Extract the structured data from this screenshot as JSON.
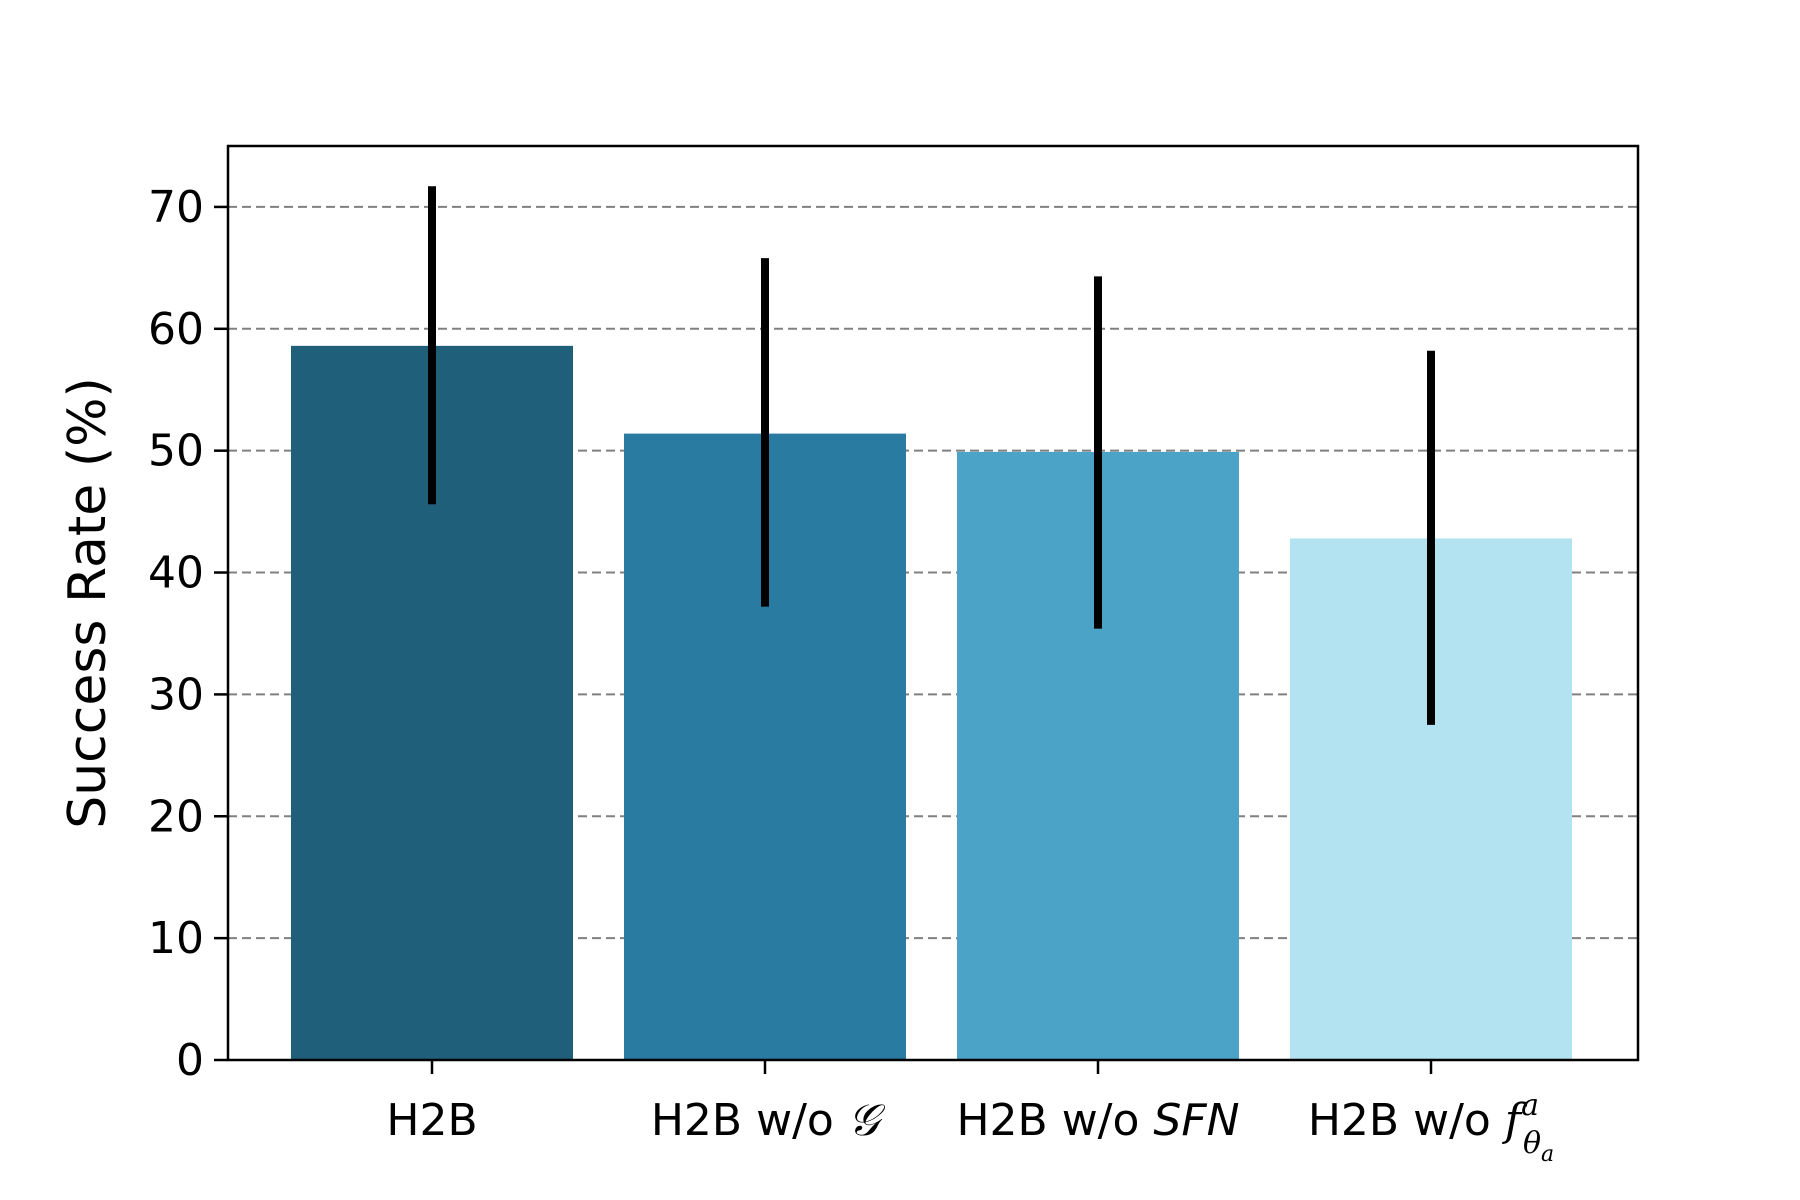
{
  "chart_data": {
    "type": "bar",
    "title": "",
    "xlabel": "",
    "ylabel": "Success Rate (%)",
    "ylim": [
      0,
      75
    ],
    "yticks": [
      0,
      10,
      20,
      30,
      40,
      50,
      60,
      70
    ],
    "grid": "y-dashed",
    "categories": [
      {
        "label": "H2B",
        "parts": [
          {
            "text": "H2B"
          }
        ]
      },
      {
        "label": "H2B w/o 𝒢",
        "parts": [
          {
            "text": "H2B w/o "
          },
          {
            "text": "𝒢",
            "style": "math"
          }
        ]
      },
      {
        "label": "H2B w/o SFN",
        "parts": [
          {
            "text": "H2B w/o "
          },
          {
            "text": "SFN",
            "style": "math-sans"
          }
        ]
      },
      {
        "label": "H2B w/o f^a_θa",
        "parts": [
          {
            "text": "H2B w/o "
          },
          {
            "text": "f",
            "style": "math"
          },
          {
            "text": "a",
            "style": "sup"
          },
          {
            "text": "θ",
            "style": "sub"
          },
          {
            "text": "a",
            "style": "subsub"
          }
        ]
      }
    ],
    "values": [
      58.6,
      51.4,
      49.9,
      42.8
    ],
    "errors_low": [
      45.6,
      37.2,
      35.4,
      27.5
    ],
    "errors_high": [
      71.7,
      65.8,
      64.3,
      58.2
    ],
    "colors": [
      "#1f5f7a",
      "#2a7ba2",
      "#4ba3c7",
      "#b3e3f1"
    ],
    "error_color": "#000000"
  }
}
